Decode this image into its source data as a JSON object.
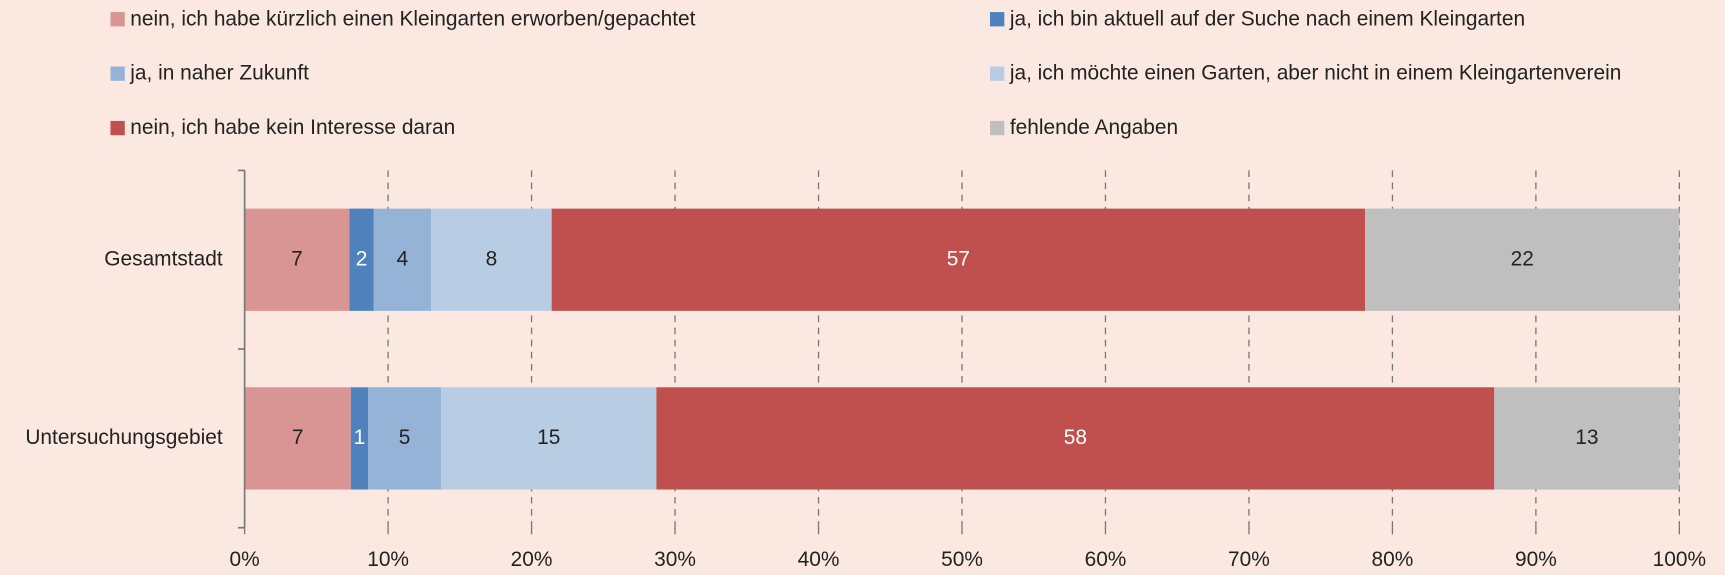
{
  "chart_data": {
    "type": "stacked_barh",
    "categories": [
      "Gesamtstadt",
      "Untersuchungsgebiet"
    ],
    "series": [
      {
        "name": "nein, ich habe kürzlich einen Kleingarten erworben/gepachtet",
        "color": "#d99594",
        "values": [
          7.3,
          7.4
        ],
        "value_labels": [
          "7",
          "7"
        ]
      },
      {
        "name": "ja, ich bin aktuell auf der Suche nach einem Kleingarten",
        "color": "#4f81bd",
        "values": [
          1.7,
          1.2
        ],
        "value_labels": [
          "2",
          "1"
        ]
      },
      {
        "name": "ja, in naher Zukunft",
        "color": "#95b3d7",
        "values": [
          4.0,
          5.1
        ],
        "value_labels": [
          "4",
          "5"
        ]
      },
      {
        "name": "ja, ich möchte einen Garten, aber nicht in einem Kleingartenverein",
        "color": "#b8cce4",
        "values": [
          8.4,
          15.0
        ],
        "value_labels": [
          "8",
          "15"
        ]
      },
      {
        "name": "nein, ich habe kein Interesse daran",
        "color": "#c0504d",
        "values": [
          56.7,
          58.4
        ],
        "value_labels": [
          "57",
          "58"
        ]
      },
      {
        "name": "fehlende Angaben",
        "color": "#bfbfbf",
        "values": [
          21.9,
          12.9
        ],
        "value_labels": [
          "22",
          "13"
        ]
      }
    ],
    "xlim": [
      0,
      100
    ],
    "xticks": [
      {
        "value": 0,
        "label": "0%"
      },
      {
        "value": 10,
        "label": "10%"
      },
      {
        "value": 20,
        "label": "20%"
      },
      {
        "value": 30,
        "label": "30%"
      },
      {
        "value": 40,
        "label": "40%"
      },
      {
        "value": 50,
        "label": "50%"
      },
      {
        "value": 60,
        "label": "60%"
      },
      {
        "value": 70,
        "label": "70%"
      },
      {
        "value": 80,
        "label": "80%"
      },
      {
        "value": 90,
        "label": "90%"
      },
      {
        "value": 100,
        "label": "100%"
      }
    ],
    "grid": true,
    "legend": "top"
  }
}
